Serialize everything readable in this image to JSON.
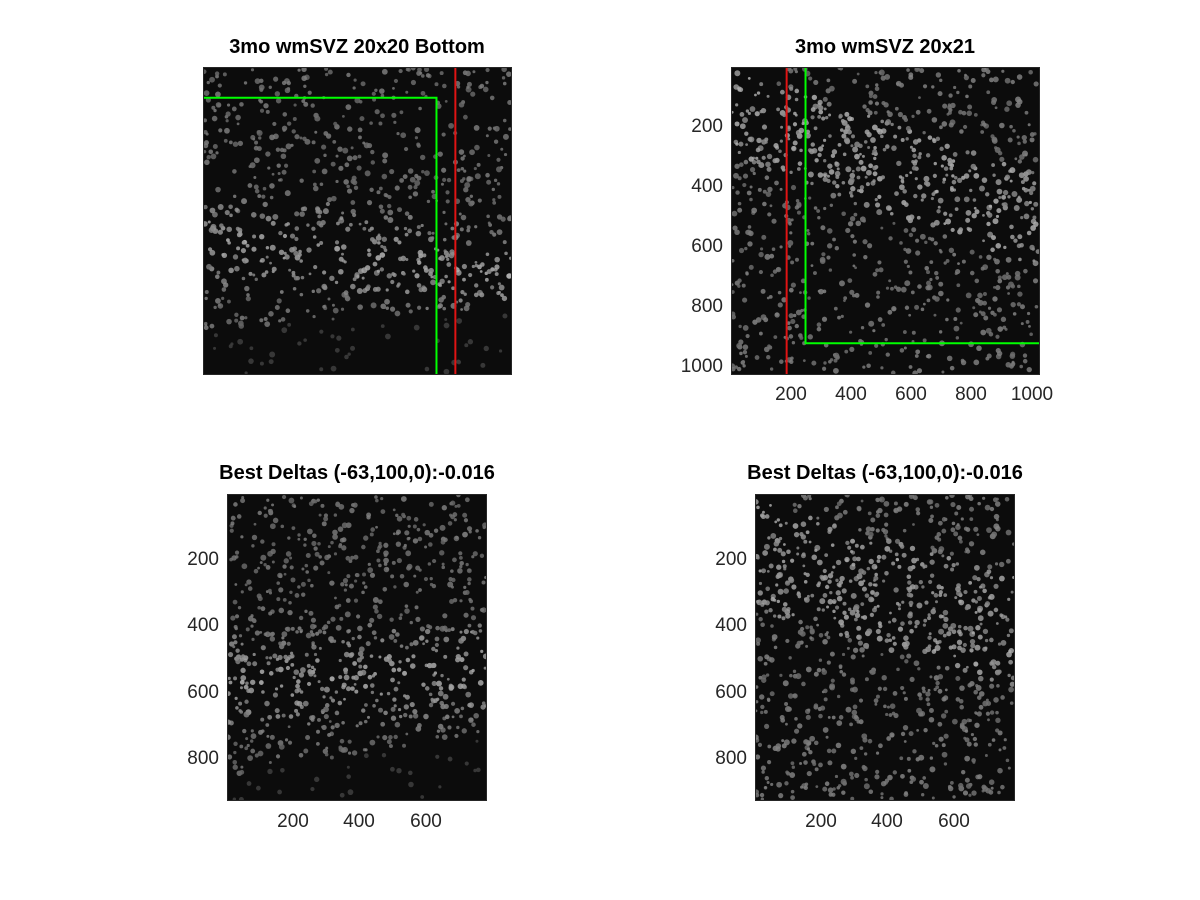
{
  "figure": {
    "panels": [
      {
        "title": "3mo wmSVZ 20x20 Bottom",
        "x_ticks": [],
        "y_ticks": []
      },
      {
        "title": "3mo wmSVZ 20x21",
        "x_ticks": [
          "200",
          "400",
          "600",
          "800",
          "1000"
        ],
        "y_ticks": [
          "200",
          "400",
          "600",
          "800",
          "1000"
        ]
      },
      {
        "title": "Best Deltas (-63,100,0):-0.016",
        "x_ticks": [
          "200",
          "400",
          "600"
        ],
        "y_ticks": [
          "200",
          "400",
          "600",
          "800"
        ]
      },
      {
        "title": "Best Deltas (-63,100,0):-0.016",
        "x_ticks": [
          "200",
          "400",
          "600"
        ],
        "y_ticks": [
          "200",
          "400",
          "600",
          "800"
        ]
      }
    ],
    "overlay_colors": {
      "green": "#00ff00",
      "red": "#e01414"
    }
  }
}
